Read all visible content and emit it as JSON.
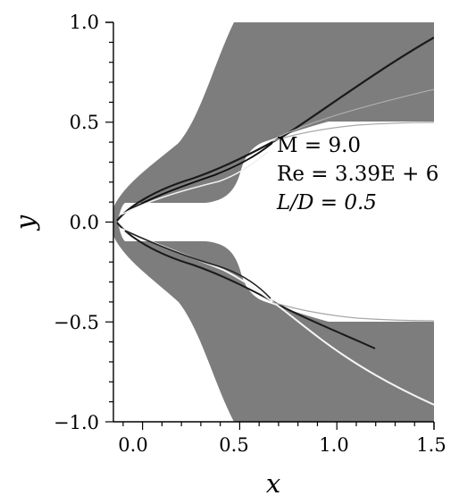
{
  "chart_data": {
    "type": "heatmap",
    "title": "",
    "xlabel": "x",
    "ylabel": "y",
    "xlim": [
      -0.15,
      1.5
    ],
    "ylim": [
      -1.0,
      1.0
    ],
    "x_ticks": [
      "0.0",
      "0.5",
      "1.0",
      "1.5"
    ],
    "y_ticks": [
      "1.0",
      "0.5",
      "0.0",
      "−0.5",
      "−1.0"
    ],
    "annotations": [
      "M = 9.0",
      "Re = 3.39E + 6",
      "L/D = 0.5"
    ],
    "body": {
      "spike_half_width": 0.05,
      "body_half_width": 0.5,
      "spike_length": 0.5
    },
    "colormap": "grayscale numerical schlieren",
    "background_color": "#7d7d7d"
  }
}
